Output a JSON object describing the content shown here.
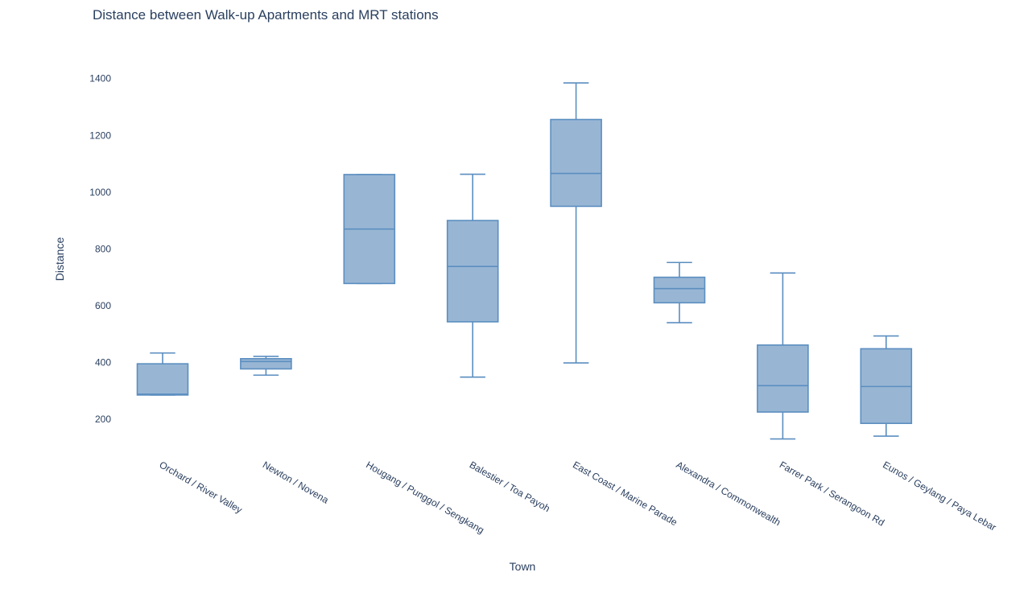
{
  "chart_data": {
    "type": "box",
    "title": "Distance between Walk-up Apartments and MRT stations",
    "xlabel": "Town",
    "ylabel": "Distance",
    "ylim": [
      75,
      1490
    ],
    "yticks": [
      200,
      400,
      600,
      800,
      1000,
      1200,
      1400
    ],
    "grid": false,
    "legend": "none",
    "box_fill": "#98b6d4",
    "box_stroke": "#5b8ec0",
    "text_color": "#2a3f5f",
    "categories": [
      "Orchard / River Valley",
      "Newton / Novena",
      "Hougang / Punggol / Sengkang",
      "Balestier / Toa Payoh",
      "East Coast / Marine Parade",
      "Alexandra / Commonwealth",
      "Farrer Park / Serangoon Rd",
      "Eunos / Geylang / Paya Lebar"
    ],
    "boxes": [
      {
        "min": 285,
        "q1": 285,
        "median": 288,
        "q3": 395,
        "max": 433
      },
      {
        "min": 355,
        "q1": 377,
        "median": 403,
        "q3": 413,
        "max": 421
      },
      {
        "min": 678,
        "q1": 678,
        "median": 870,
        "q3": 1062,
        "max": 1062
      },
      {
        "min": 348,
        "q1": 543,
        "median": 738,
        "q3": 900,
        "max": 1063
      },
      {
        "min": 398,
        "q1": 950,
        "median": 1066,
        "q3": 1256,
        "max": 1385
      },
      {
        "min": 540,
        "q1": 610,
        "median": 660,
        "q3": 700,
        "max": 752
      },
      {
        "min": 130,
        "q1": 225,
        "median": 318,
        "q3": 461,
        "max": 715
      },
      {
        "min": 140,
        "q1": 185,
        "median": 315,
        "q3": 448,
        "max": 493
      }
    ]
  }
}
